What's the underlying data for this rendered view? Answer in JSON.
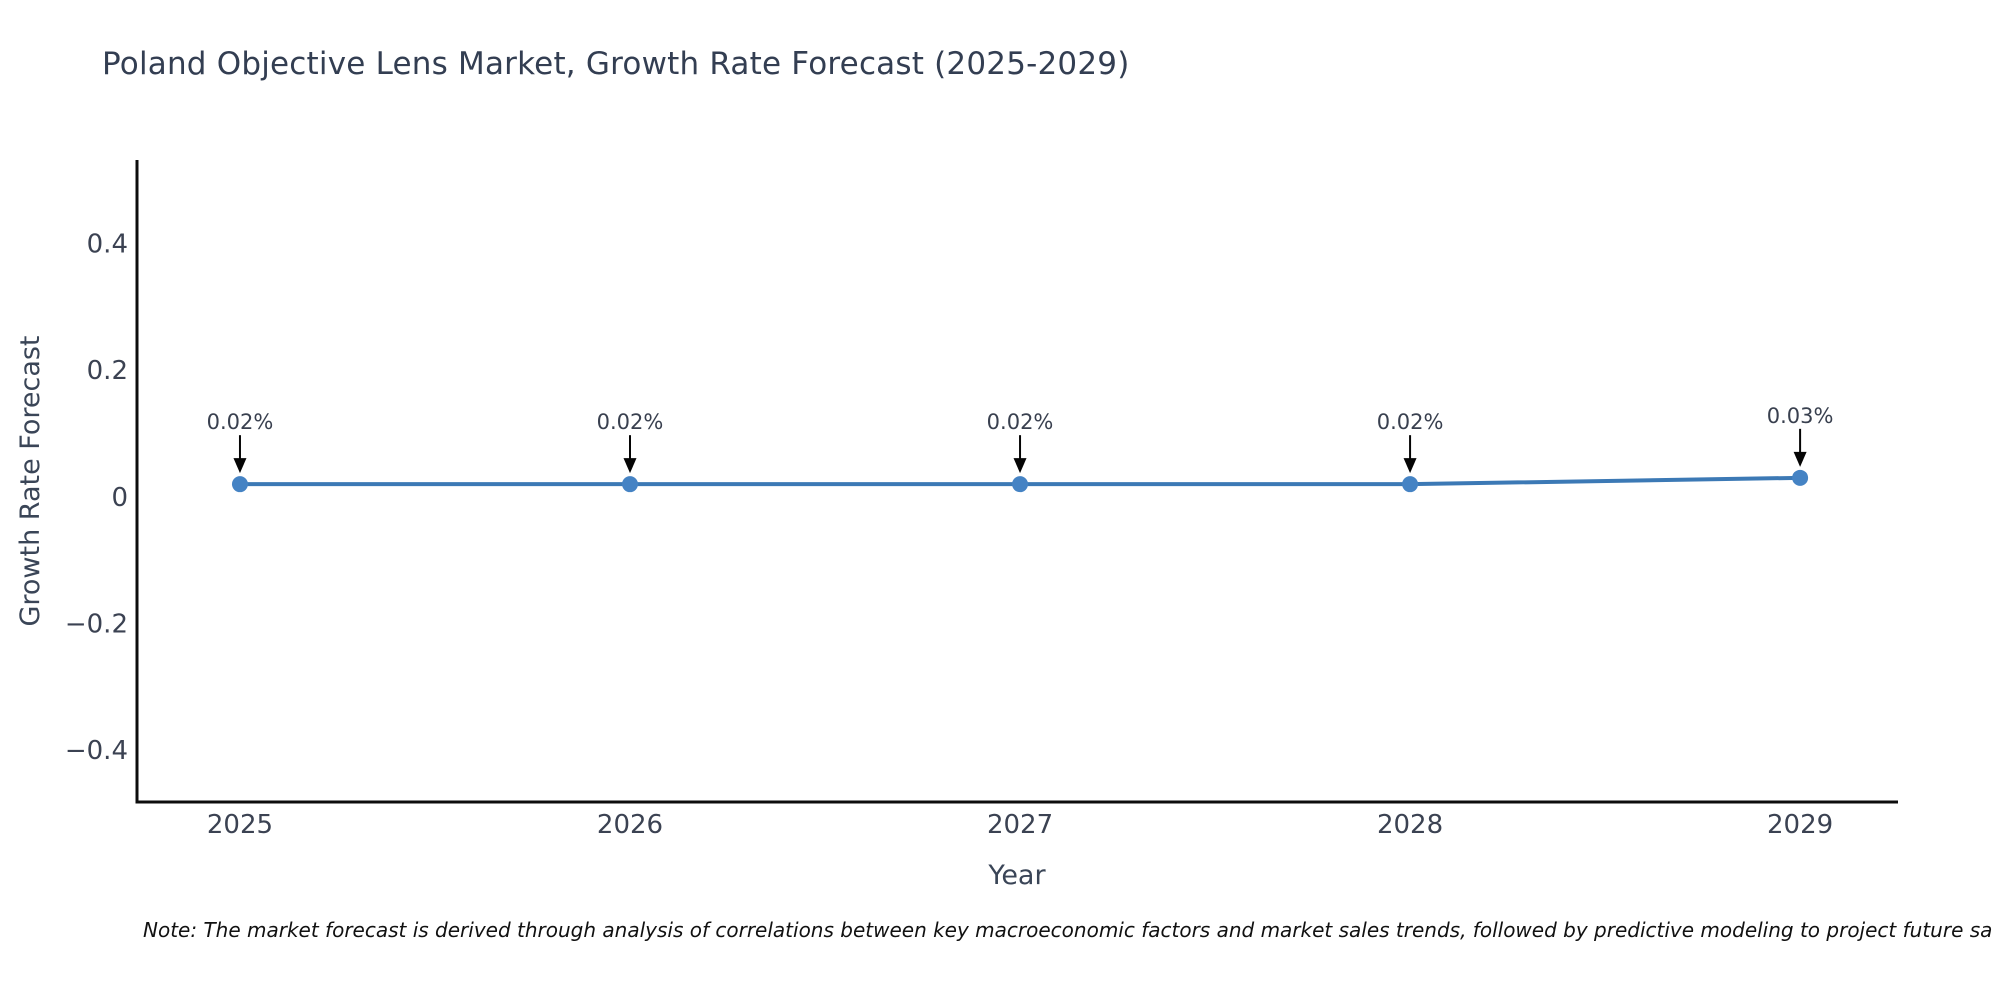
{
  "figure": {
    "title": "Poland Objective Lens Market, Growth Rate Forecast (2025-2029)",
    "footnote": "Note: The market forecast is derived through analysis of correlations between key macroeconomic factors and market sales trends, followed by predictive modeling to project future sa"
  },
  "chart_data": {
    "type": "line",
    "title": "Poland Objective Lens Market, Growth Rate Forecast (2025-2029)",
    "xlabel": "Year",
    "ylabel": "Growth Rate Forecast",
    "x": [
      2025,
      2026,
      2027,
      2028,
      2029
    ],
    "series": [
      {
        "name": "Growth Rate Forecast",
        "values": [
          0.02,
          0.02,
          0.02,
          0.02,
          0.03
        ],
        "point_labels": [
          "0.02%",
          "0.02%",
          "0.02%",
          "0.02%",
          "0.03%"
        ]
      }
    ],
    "xticks": {
      "values": [
        2025,
        2026,
        2027,
        2028,
        2029
      ],
      "labels": [
        "2025",
        "2026",
        "2027",
        "2028",
        "2029"
      ]
    },
    "yticks": {
      "values": [
        0.4,
        0.2,
        0,
        -0.2,
        -0.4
      ],
      "labels": [
        "0.4",
        "0.2",
        "0",
        "−0.2",
        "−0.4"
      ]
    },
    "xlim": [
      2024.736,
      2029.251
    ],
    "ylim": [
      -0.482,
      0.532
    ],
    "grid": false,
    "legend": "none",
    "colors": {
      "line": "#3c79b5",
      "marker": "#4583c4",
      "annotation_arrow": "#050505",
      "annotation_text": "#39404f",
      "tick_text": "#3b4252",
      "axis_title_text": "#3a4557",
      "spine": "#0d0d0d"
    }
  }
}
